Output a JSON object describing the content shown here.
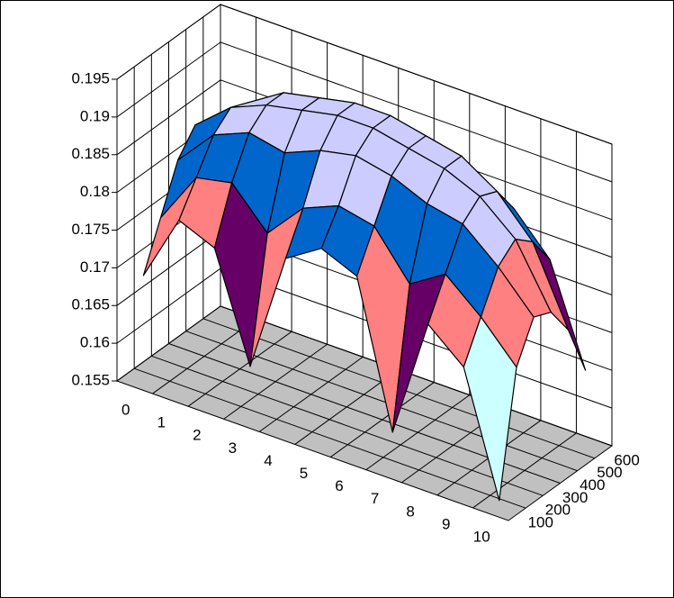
{
  "chart_data": {
    "type": "surface3d",
    "categories": [
      "0",
      "1",
      "2",
      "3",
      "4",
      "5",
      "6",
      "7",
      "8",
      "9",
      "10"
    ],
    "series": [
      {
        "name": "100",
        "values": [
          0.169,
          0.178,
          0.176,
          0.162,
          0.178,
          0.181,
          0.179,
          0.16,
          0.176,
          0.172,
          0.156
        ]
      },
      {
        "name": "200",
        "values": [
          0.175,
          0.182,
          0.183,
          0.178,
          0.183,
          0.185,
          0.184,
          0.178,
          0.181,
          0.177,
          0.172
        ]
      },
      {
        "name": "300",
        "values": [
          0.181,
          0.186,
          0.188,
          0.187,
          0.189,
          0.19,
          0.189,
          0.187,
          0.186,
          0.182,
          0.177
        ]
      },
      {
        "name": "400",
        "values": [
          0.184,
          0.188,
          0.19,
          0.191,
          0.192,
          0.192,
          0.191,
          0.19,
          0.188,
          0.184,
          0.176
        ]
      },
      {
        "name": "500",
        "values": [
          0.183,
          0.187,
          0.19,
          0.191,
          0.192,
          0.192,
          0.191,
          0.19,
          0.187,
          0.182,
          0.172
        ]
      },
      {
        "name": "600",
        "values": [
          0.178,
          0.183,
          0.186,
          0.188,
          0.189,
          0.189,
          0.188,
          0.186,
          0.183,
          0.178,
          0.165
        ]
      }
    ],
    "zlim": [
      0.155,
      0.195
    ],
    "zticks": [
      0.155,
      0.16,
      0.165,
      0.17,
      0.175,
      0.18,
      0.185,
      0.19,
      0.195
    ],
    "band_colors": [
      "#ffffcc",
      "#ffffcc",
      "#ccffff",
      "#660066",
      "#ff8080",
      "#0066cc",
      "#ccccff",
      "#ccccff"
    ],
    "floor_color": "#c0c0c0",
    "grid": true
  }
}
